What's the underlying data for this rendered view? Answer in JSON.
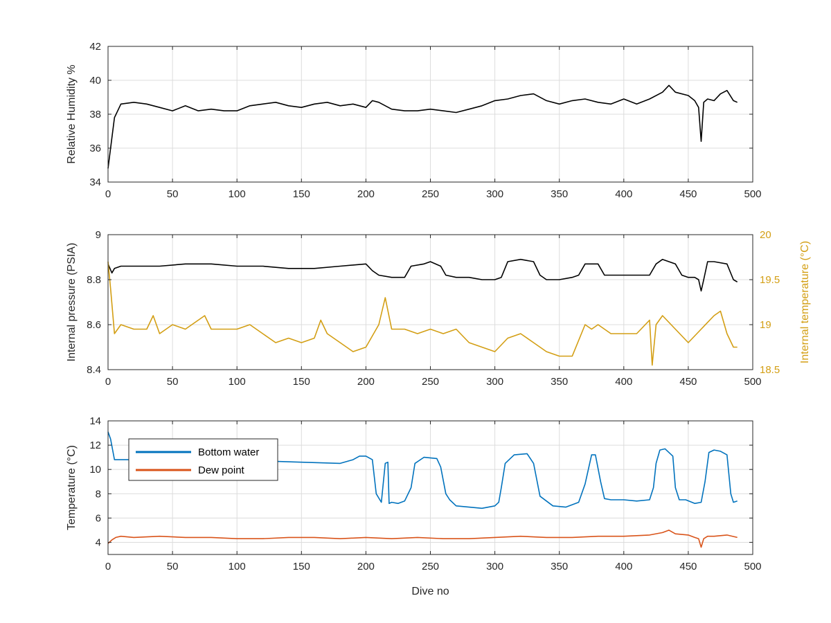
{
  "chart_data": [
    {
      "type": "line",
      "xlabel": "",
      "ylabel": "Relative Humidity %",
      "xlim": [
        0,
        500
      ],
      "ylim": [
        34,
        42
      ],
      "xticks": [
        0,
        50,
        100,
        150,
        200,
        250,
        300,
        350,
        400,
        450,
        500
      ],
      "yticks": [
        34,
        36,
        38,
        40,
        42
      ],
      "grid": true,
      "series": [
        {
          "color": "#000000",
          "x": [
            0,
            2,
            5,
            10,
            20,
            30,
            40,
            50,
            60,
            70,
            80,
            90,
            100,
            110,
            120,
            130,
            140,
            150,
            160,
            170,
            180,
            190,
            200,
            205,
            210,
            220,
            230,
            240,
            250,
            260,
            270,
            280,
            290,
            300,
            310,
            320,
            330,
            340,
            350,
            360,
            370,
            380,
            390,
            400,
            410,
            420,
            430,
            435,
            440,
            450,
            455,
            458,
            460,
            462,
            465,
            470,
            475,
            480,
            485,
            488
          ],
          "y": [
            34.8,
            36,
            37.8,
            38.6,
            38.7,
            38.6,
            38.4,
            38.2,
            38.5,
            38.2,
            38.3,
            38.2,
            38.2,
            38.5,
            38.6,
            38.7,
            38.5,
            38.4,
            38.6,
            38.7,
            38.5,
            38.6,
            38.4,
            38.8,
            38.7,
            38.3,
            38.2,
            38.2,
            38.3,
            38.2,
            38.1,
            38.3,
            38.5,
            38.8,
            38.9,
            39.1,
            39.2,
            38.8,
            38.6,
            38.8,
            38.9,
            38.7,
            38.6,
            38.9,
            38.6,
            38.9,
            39.3,
            39.7,
            39.3,
            39.1,
            38.8,
            38.4,
            36.4,
            38.7,
            38.9,
            38.8,
            39.2,
            39.4,
            38.8,
            38.7
          ]
        }
      ]
    },
    {
      "type": "line",
      "xlabel": "",
      "ylabel": "Internal pressure (PSIA)",
      "ylabel_right": "Internal temperature (°C)",
      "xlim": [
        0,
        500
      ],
      "ylim": [
        8.4,
        9
      ],
      "ylim_right": [
        18.5,
        20
      ],
      "xticks": [
        0,
        50,
        100,
        150,
        200,
        250,
        300,
        350,
        400,
        450,
        500
      ],
      "yticks": [
        "8.4",
        "8.6",
        "8.8",
        "9"
      ],
      "yticks_right": [
        "18.5",
        "19",
        "19.5",
        "20"
      ],
      "grid": true,
      "series": [
        {
          "axis": "left",
          "color": "#000000",
          "x": [
            0,
            3,
            5,
            10,
            20,
            40,
            60,
            80,
            100,
            120,
            140,
            160,
            180,
            200,
            205,
            210,
            220,
            230,
            235,
            245,
            250,
            258,
            262,
            270,
            280,
            290,
            300,
            305,
            310,
            320,
            330,
            335,
            340,
            350,
            360,
            365,
            370,
            380,
            385,
            390,
            400,
            410,
            420,
            425,
            430,
            440,
            445,
            450,
            455,
            458,
            460,
            462,
            465,
            470,
            480,
            485,
            488
          ],
          "y": [
            8.87,
            8.83,
            8.85,
            8.86,
            8.86,
            8.86,
            8.87,
            8.87,
            8.86,
            8.86,
            8.85,
            8.85,
            8.86,
            8.87,
            8.84,
            8.82,
            8.81,
            8.81,
            8.86,
            8.87,
            8.88,
            8.86,
            8.82,
            8.81,
            8.81,
            8.8,
            8.8,
            8.81,
            8.88,
            8.89,
            8.88,
            8.82,
            8.8,
            8.8,
            8.81,
            8.82,
            8.87,
            8.87,
            8.82,
            8.82,
            8.82,
            8.82,
            8.82,
            8.87,
            8.89,
            8.87,
            8.82,
            8.81,
            8.81,
            8.8,
            8.75,
            8.8,
            8.88,
            8.88,
            8.87,
            8.8,
            8.79
          ]
        },
        {
          "axis": "right",
          "color": "#D39E13",
          "x": [
            0,
            2,
            5,
            10,
            20,
            30,
            35,
            40,
            50,
            60,
            70,
            75,
            80,
            90,
            100,
            110,
            120,
            130,
            140,
            150,
            160,
            165,
            170,
            180,
            190,
            200,
            210,
            215,
            220,
            230,
            240,
            250,
            260,
            270,
            280,
            290,
            300,
            310,
            320,
            330,
            340,
            350,
            360,
            370,
            375,
            380,
            390,
            400,
            410,
            420,
            422,
            425,
            430,
            440,
            450,
            460,
            470,
            475,
            480,
            485,
            488
          ],
          "y": [
            19.7,
            19.4,
            18.9,
            19,
            18.95,
            18.95,
            19.1,
            18.9,
            19.0,
            18.95,
            19.05,
            19.1,
            18.95,
            18.95,
            18.95,
            19.0,
            18.9,
            18.8,
            18.85,
            18.8,
            18.85,
            19.05,
            18.9,
            18.8,
            18.7,
            18.75,
            19.0,
            19.3,
            18.95,
            18.95,
            18.9,
            18.95,
            18.9,
            18.95,
            18.8,
            18.75,
            18.7,
            18.85,
            18.9,
            18.8,
            18.7,
            18.65,
            18.65,
            19.0,
            18.95,
            19.0,
            18.9,
            18.9,
            18.9,
            19.05,
            18.55,
            19.0,
            19.1,
            18.95,
            18.8,
            18.95,
            19.1,
            19.15,
            18.9,
            18.75,
            18.75
          ]
        }
      ]
    },
    {
      "type": "line",
      "xlabel": "Dive no",
      "ylabel": "Temperature (°C)",
      "xlim": [
        0,
        500
      ],
      "ylim": [
        3,
        14
      ],
      "xticks": [
        0,
        50,
        100,
        150,
        200,
        250,
        300,
        350,
        400,
        450,
        500
      ],
      "yticks": [
        4,
        6,
        8,
        10,
        12,
        14
      ],
      "grid": true,
      "legend": "top-left",
      "series": [
        {
          "name": "Bottom water",
          "color": "#0072BD",
          "x": [
            0,
            2,
            5,
            10,
            20,
            30,
            50,
            60,
            80,
            100,
            120,
            150,
            180,
            190,
            195,
            200,
            205,
            208,
            212,
            215,
            217,
            218,
            220,
            225,
            230,
            235,
            238,
            245,
            255,
            258,
            262,
            265,
            270,
            280,
            290,
            300,
            303,
            305,
            308,
            315,
            325,
            330,
            335,
            345,
            355,
            360,
            365,
            370,
            375,
            378,
            382,
            385,
            390,
            400,
            410,
            420,
            423,
            425,
            428,
            432,
            438,
            440,
            443,
            448,
            455,
            460,
            463,
            466,
            470,
            475,
            480,
            483,
            485,
            488
          ],
          "y": [
            13.1,
            12.5,
            10.8,
            10.8,
            10.8,
            10.8,
            10.8,
            10.6,
            10.8,
            10.7,
            10.7,
            10.6,
            10.5,
            10.8,
            11.1,
            11.1,
            10.8,
            8.0,
            7.3,
            10.5,
            10.6,
            7.2,
            7.3,
            7.2,
            7.4,
            8.5,
            10.5,
            11.0,
            10.9,
            10.2,
            8.0,
            7.5,
            7.0,
            6.9,
            6.8,
            7.0,
            7.3,
            8.5,
            10.5,
            11.2,
            11.3,
            10.5,
            7.8,
            7.0,
            6.9,
            7.1,
            7.3,
            8.8,
            11.2,
            11.2,
            9.0,
            7.6,
            7.5,
            7.5,
            7.4,
            7.5,
            8.5,
            10.5,
            11.6,
            11.7,
            11.1,
            8.5,
            7.5,
            7.5,
            7.2,
            7.3,
            9.0,
            11.4,
            11.6,
            11.5,
            11.2,
            8.0,
            7.3,
            7.4
          ]
        },
        {
          "name": "Dew point",
          "color": "#D95319",
          "x": [
            0,
            3,
            6,
            10,
            20,
            40,
            60,
            80,
            100,
            120,
            140,
            160,
            180,
            200,
            220,
            240,
            260,
            280,
            300,
            320,
            340,
            360,
            380,
            400,
            420,
            430,
            435,
            440,
            450,
            455,
            458,
            460,
            462,
            465,
            470,
            480,
            488
          ],
          "y": [
            3.9,
            4.2,
            4.4,
            4.5,
            4.4,
            4.5,
            4.4,
            4.4,
            4.3,
            4.3,
            4.4,
            4.4,
            4.3,
            4.4,
            4.3,
            4.4,
            4.3,
            4.3,
            4.4,
            4.5,
            4.4,
            4.4,
            4.5,
            4.5,
            4.6,
            4.8,
            5.0,
            4.7,
            4.6,
            4.4,
            4.3,
            3.6,
            4.3,
            4.5,
            4.5,
            4.6,
            4.4
          ]
        }
      ]
    }
  ]
}
